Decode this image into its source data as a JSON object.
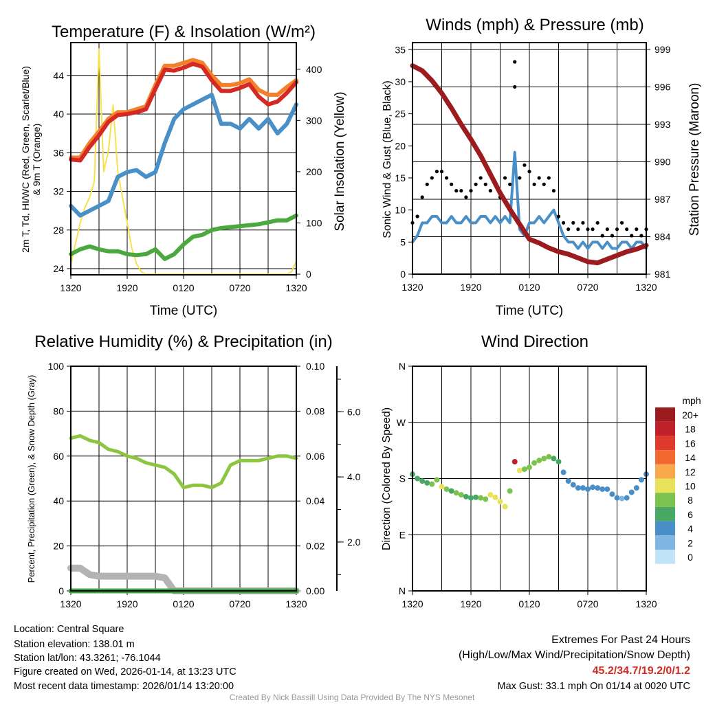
{
  "colors": {
    "temp_2m": "#d42a23",
    "temp_9m": "#f4812a",
    "dewpoint": "#4a90c8",
    "hiwc": "#4aa83f",
    "insolation": "#f7e14f",
    "wind": "#4a90c8",
    "gust": "#000000",
    "pressure": "#9b1b1e",
    "rh": "#8cc63f",
    "precip": "#3aa53a",
    "snow": "#b3b3b3",
    "footer_credit": "#999999",
    "extremes": "#d42a23"
  },
  "chart_data": [
    {
      "type": "line",
      "title": "Temperature (F) & Insolation (W/m²)",
      "xlabel": "Time (UTC)",
      "ylabel": [
        "2m T, Td, HI/WC (Red, Green, Scarlet/Blue)",
        "& 9m T (Orange)"
      ],
      "ylabel_right": "Solar Insolation (Yellow)",
      "xticks": [
        "1320",
        "1920",
        "0120",
        "0720",
        "1320"
      ],
      "yticks": [
        24,
        28,
        32,
        36,
        40,
        44
      ],
      "yticks_right": [
        0,
        100,
        200,
        300,
        400
      ],
      "ylim": [
        23.36,
        47.4
      ],
      "ylim_right": [
        -1.3,
        452
      ],
      "series": [
        {
          "name": "9m T (Orange)",
          "color_key": "temp_9m",
          "values": [
            35.5,
            35.5,
            37,
            38.2,
            39.5,
            40.2,
            40.2,
            40.5,
            40.8,
            43,
            45,
            45,
            45.3,
            45.6,
            45.3,
            44,
            43,
            43,
            43.2,
            43.6,
            42.5,
            42,
            42,
            42.8,
            43.5
          ]
        },
        {
          "name": "2m T (Red)",
          "color_key": "temp_2m",
          "values": [
            35.3,
            35.2,
            36.6,
            37.8,
            39.2,
            39.9,
            40,
            40.2,
            40.5,
            42.6,
            44.6,
            44.5,
            44.8,
            45.2,
            44.9,
            43.5,
            42.4,
            42.4,
            42.7,
            43.1,
            41.8,
            41,
            41.3,
            42.2,
            43.3
          ]
        },
        {
          "name": "HI/WC (Blue)",
          "color_key": "dewpoint",
          "values": [
            30.5,
            29.5,
            30,
            30.5,
            31,
            33.5,
            34,
            34.2,
            33.5,
            34,
            37,
            39.5,
            40.5,
            41,
            41.5,
            42,
            39,
            39,
            38.5,
            39.5,
            38.5,
            39.5,
            38,
            39,
            41
          ]
        },
        {
          "name": "Td (Green)",
          "color_key": "hiwc",
          "values": [
            25.5,
            26,
            26.3,
            26,
            25.8,
            25.8,
            25.5,
            25.4,
            25.5,
            26,
            25,
            25.5,
            26.5,
            27.3,
            27.5,
            28,
            28.2,
            28.3,
            28.4,
            28.5,
            28.6,
            28.8,
            29,
            29,
            29.5
          ]
        }
      ],
      "insolation_halfhourly": [
        20,
        60,
        100,
        130,
        150,
        180,
        440,
        200,
        240,
        330,
        200,
        150,
        100,
        50,
        20,
        5,
        0,
        0,
        0,
        0,
        0,
        0,
        0,
        0,
        0,
        0,
        0,
        0,
        0,
        0,
        0,
        0,
        0,
        0,
        0,
        0,
        0,
        0,
        0,
        0,
        0,
        0,
        0,
        0,
        0,
        0,
        0,
        5,
        25
      ]
    },
    {
      "type": "line",
      "title": "Winds (mph) & Pressure (mb)",
      "xlabel": "Time (UTC)",
      "ylabel": "Sonic Wind & Gust (Blue, Black)",
      "ylabel_right": "Station Pressure (Maroon)",
      "xticks": [
        "1320",
        "1920",
        "0120",
        "0720",
        "1320"
      ],
      "yticks": [
        0,
        5,
        10,
        15,
        20,
        25,
        30,
        35
      ],
      "yticks_right": [
        981,
        984,
        987,
        990,
        993,
        996,
        999
      ],
      "ylim": [
        0,
        36.1
      ],
      "ylim_right": [
        981,
        999.55
      ],
      "wind_halfhourly": [
        5,
        6,
        8,
        8,
        9,
        9,
        8,
        8,
        9,
        8,
        8,
        9,
        8,
        8,
        9,
        9,
        8,
        9,
        8,
        9,
        8,
        19,
        7,
        6,
        8,
        8,
        9,
        8,
        9,
        10,
        8,
        6,
        5,
        5,
        4,
        5,
        4,
        5,
        5,
        4,
        5,
        4,
        4,
        5,
        5,
        4,
        5,
        5,
        4
      ],
      "gust_halfhourly": [
        8,
        9,
        12,
        14,
        15,
        16,
        16,
        15,
        14,
        13,
        13,
        12,
        13,
        14,
        15,
        14,
        13,
        14,
        12,
        15,
        14,
        33.1,
        15,
        17,
        16,
        14,
        15,
        14,
        15,
        13,
        9,
        8,
        7,
        8,
        7,
        8,
        7,
        7,
        8,
        6,
        7,
        6,
        7,
        8,
        7,
        6,
        7,
        6,
        7
      ],
      "gust_extra": [
        [
          10.5,
          29.2
        ]
      ],
      "pressure_hourly": [
        997.7,
        997.3,
        996.5,
        995.5,
        994.3,
        993,
        991.8,
        990.5,
        989,
        987.5,
        986.2,
        985,
        983.8,
        983.5,
        983.1,
        982.8,
        982.6,
        982.3,
        982,
        981.9,
        982.2,
        982.5,
        982.8,
        983,
        983.3
      ]
    },
    {
      "type": "line",
      "title": "Relative Humidity (%) & Precipitation (in)",
      "ylabel": "Percent, Precipitation (Green), & Snow Depth (Gray)",
      "xticks": [
        "1320",
        "1920",
        "0120",
        "0720",
        "1320"
      ],
      "yticks": [
        0,
        20,
        40,
        60,
        80,
        100
      ],
      "yticks_right": [
        "0.00",
        "0.02",
        "0.04",
        "0.06",
        "0.08",
        "0.10"
      ],
      "yticks_snow": [
        "2.0",
        "4.0",
        "6.0"
      ],
      "ylim": [
        0,
        100
      ],
      "ylim_right": [
        0,
        0.1
      ],
      "ylim_snow": [
        0.5,
        7.4
      ],
      "rh_hourly": [
        68,
        69,
        67,
        66,
        63,
        62,
        60,
        59,
        57,
        56,
        55,
        52,
        46,
        47,
        47,
        46,
        48,
        56,
        58,
        58,
        58,
        59,
        60,
        60,
        59
      ],
      "precip_hourly": [
        0,
        0,
        0,
        0,
        0,
        0,
        0,
        0,
        0,
        0,
        0,
        0,
        0,
        0,
        0,
        0,
        0,
        0,
        0,
        0,
        0,
        0,
        0,
        0,
        0
      ],
      "snow_hourly": [
        1.2,
        1.2,
        1.0,
        0.95,
        0.95,
        0.95,
        0.95,
        0.95,
        0.95,
        0.95,
        0.9,
        0.5,
        0.5,
        0.5,
        0.5,
        0.5,
        0.5,
        0.5,
        0.5,
        0.5,
        0.5,
        0.5,
        0.5,
        0.5,
        0.5
      ]
    },
    {
      "type": "scatter",
      "title": "Wind Direction",
      "ylabel": "Direction (Colored By Speed)",
      "xticks": [
        "1320",
        "1920",
        "0120",
        "0720",
        "1320"
      ],
      "yticks": [
        "N",
        "E",
        "S",
        "W",
        "N"
      ],
      "ylim": [
        0,
        360
      ],
      "dir_halfhourly": [
        187,
        180,
        176,
        173,
        171,
        178,
        167,
        163,
        160,
        157,
        154,
        151,
        149,
        150,
        149,
        147,
        154,
        150,
        143,
        135,
        160,
        207,
        193,
        195,
        198,
        205,
        209,
        212,
        215,
        212,
        207,
        190,
        176,
        170,
        165,
        165,
        163,
        166,
        165,
        163,
        163,
        155,
        149,
        148,
        149,
        158,
        165,
        178,
        187
      ],
      "speed_halfhourly": [
        7,
        7,
        6,
        7,
        8,
        9,
        10,
        8,
        7,
        9,
        8,
        7,
        7,
        7,
        8,
        9,
        10,
        10,
        11,
        10,
        9,
        19,
        10,
        9,
        8,
        8,
        8,
        9,
        8,
        7,
        6,
        5,
        4,
        4,
        5,
        5,
        4,
        5,
        4,
        4,
        5,
        4,
        4,
        3,
        4,
        5,
        5,
        4,
        4
      ],
      "colorbar_title": "mph",
      "colorbar": [
        {
          "label": "20+",
          "color": "#9b1b1e"
        },
        {
          "label": "18",
          "color": "#c0202a"
        },
        {
          "label": "16",
          "color": "#e03a2c"
        },
        {
          "label": "14",
          "color": "#f26a30"
        },
        {
          "label": "12",
          "color": "#f9a94b"
        },
        {
          "label": "10",
          "color": "#e8e15a"
        },
        {
          "label": "8",
          "color": "#7cc24f"
        },
        {
          "label": "6",
          "color": "#4aa866"
        },
        {
          "label": "4",
          "color": "#4a8ec8"
        },
        {
          "label": "2",
          "color": "#7fb6e3"
        },
        {
          "label": "0",
          "color": "#bfe3f7"
        }
      ]
    }
  ],
  "footer": {
    "location": "Location: Central Square",
    "elevation": "Station elevation: 138.01 m",
    "latlon": "Station lat/lon: 43.3261; -76.1044",
    "created": "Figure created on Wed, 2026-01-14, at 13:23 UTC",
    "recent": "Most recent data timestamp: 2026/01/14 13:20:00",
    "extremes_title": "Extremes For Past 24 Hours",
    "extremes_desc": "(High/Low/Max Wind/Precipitation/Snow Depth)",
    "extremes_values": "45.2/34.7/19.2/0/1.2",
    "max_gust": "Max Gust: 33.1 mph On 01/14 at 0020 UTC",
    "credit": "Created By Nick Bassill Using Data Provided By The NYS Mesonet"
  }
}
